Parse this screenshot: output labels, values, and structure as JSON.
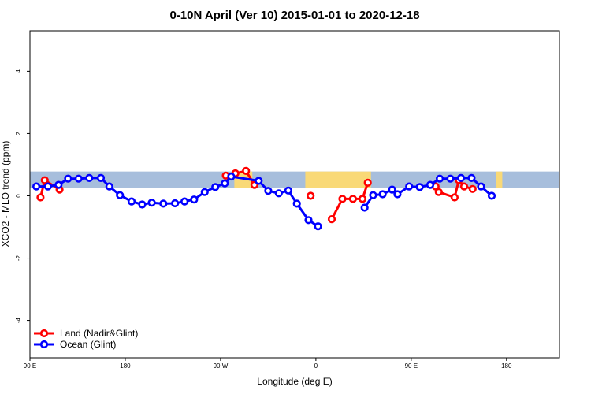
{
  "chart_data": {
    "type": "line",
    "title": "0-10N April (Ver 10)   2015-01-01 to 2020-12-18",
    "xlabel": "Longitude (deg E)",
    "ylabel": "XCO2 - MLO trend (ppm)",
    "xlim": [
      90,
      590
    ],
    "ylim": [
      -5.2,
      5.3
    ],
    "x_ticks": [
      {
        "value": 90,
        "label": "90 E"
      },
      {
        "value": 180,
        "label": "180"
      },
      {
        "value": 270,
        "label": "90 W"
      },
      {
        "value": 360,
        "label": "0"
      },
      {
        "value": 450,
        "label": "90 E"
      },
      {
        "value": 540,
        "label": "180"
      }
    ],
    "y_ticks": [
      {
        "value": -4,
        "label": "-4"
      },
      {
        "value": -2,
        "label": "-2"
      },
      {
        "value": 0,
        "label": "0"
      },
      {
        "value": 2,
        "label": "2"
      },
      {
        "value": 4,
        "label": "4"
      }
    ],
    "background_band": {
      "ymin": 0.25,
      "ymax": 0.78,
      "ocean_color": "#a7bedc",
      "land_color": "#f9d977"
    },
    "land_spans": [
      [
        283,
        300
      ],
      [
        350,
        412
      ],
      [
        530,
        536
      ]
    ],
    "series": [
      {
        "name": "Land (Nadir&Glint)",
        "color": "#ff0000",
        "segments": [
          [
            [
              100,
              -0.05
            ],
            [
              104,
              0.5
            ],
            [
              118,
              0.2
            ]
          ],
          [
            [
              275,
              0.65
            ],
            [
              284,
              0.72
            ],
            [
              294,
              0.8
            ],
            [
              302,
              0.35
            ]
          ],
          [
            [
              355,
              0
            ]
          ],
          [
            [
              375,
              -0.75
            ],
            [
              385,
              -0.1
            ],
            [
              395,
              -0.1
            ],
            [
              404,
              -0.1
            ],
            [
              409,
              0.42
            ]
          ],
          [
            [
              473,
              0.3
            ],
            [
              476,
              0.12
            ],
            [
              491,
              -0.05
            ],
            [
              495,
              0.5
            ],
            [
              500,
              0.3
            ],
            [
              508,
              0.22
            ]
          ]
        ]
      },
      {
        "name": "Ocean (Glint)",
        "color": "#0000ff",
        "segments": [
          [
            [
              96,
              0.3
            ],
            [
              107,
              0.3
            ],
            [
              117,
              0.35
            ],
            [
              126,
              0.55
            ],
            [
              136,
              0.55
            ],
            [
              146,
              0.57
            ],
            [
              157,
              0.57
            ],
            [
              165,
              0.3
            ],
            [
              175,
              0.02
            ],
            [
              186,
              -0.18
            ],
            [
              196,
              -0.28
            ],
            [
              205,
              -0.22
            ],
            [
              216,
              -0.25
            ],
            [
              227,
              -0.24
            ],
            [
              236,
              -0.18
            ],
            [
              245,
              -0.12
            ],
            [
              255,
              0.12
            ],
            [
              265,
              0.28
            ],
            [
              274,
              0.4
            ],
            [
              280,
              0.62
            ],
            [
              306,
              0.48
            ],
            [
              315,
              0.16
            ],
            [
              325,
              0.08
            ],
            [
              334,
              0.17
            ],
            [
              342,
              -0.25
            ],
            [
              353,
              -0.78
            ],
            [
              362,
              -0.98
            ]
          ],
          [
            [
              406,
              -0.38
            ],
            [
              414,
              0.02
            ],
            [
              423,
              0.05
            ],
            [
              432,
              0.2
            ],
            [
              437,
              0.05
            ],
            [
              448,
              0.3
            ],
            [
              458,
              0.28
            ],
            [
              468,
              0.35
            ],
            [
              477,
              0.55
            ],
            [
              487,
              0.55
            ],
            [
              497,
              0.57
            ],
            [
              507,
              0.57
            ],
            [
              516,
              0.3
            ],
            [
              526,
              0
            ]
          ]
        ]
      }
    ],
    "legend": {
      "position": "bottom-left",
      "entries": [
        "Land (Nadir&Glint)",
        "Ocean (Glint)"
      ]
    }
  }
}
